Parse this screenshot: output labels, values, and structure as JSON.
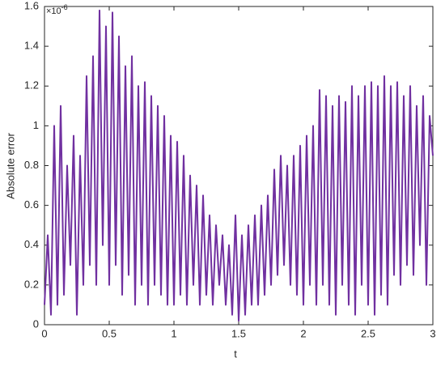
{
  "chart_data": {
    "type": "line",
    "xlabel": "t",
    "ylabel": "Absolute error",
    "y_multiplier": {
      "base": "×10",
      "exponent": "-6"
    },
    "xlim": [
      0,
      3
    ],
    "xticks": [
      0,
      0.5,
      1,
      1.5,
      2,
      2.5,
      3
    ],
    "ylim": [
      0,
      1.6
    ],
    "yticks": [
      0,
      0.2,
      0.4,
      0.6,
      0.8,
      1,
      1.2,
      1.4,
      1.6
    ],
    "x": [
      0,
      0.025,
      0.05,
      0.075,
      0.1,
      0.125,
      0.15,
      0.175,
      0.2,
      0.225,
      0.25,
      0.275,
      0.3,
      0.325,
      0.35,
      0.375,
      0.4,
      0.425,
      0.45,
      0.475,
      0.5,
      0.525,
      0.55,
      0.575,
      0.6,
      0.625,
      0.65,
      0.675,
      0.7,
      0.725,
      0.75,
      0.775,
      0.8,
      0.825,
      0.85,
      0.875,
      0.9,
      0.925,
      0.95,
      0.975,
      1,
      1.025,
      1.05,
      1.075,
      1.1,
      1.125,
      1.15,
      1.175,
      1.2,
      1.225,
      1.25,
      1.275,
      1.3,
      1.325,
      1.35,
      1.375,
      1.4,
      1.425,
      1.45,
      1.475,
      1.5,
      1.525,
      1.55,
      1.575,
      1.6,
      1.625,
      1.65,
      1.675,
      1.7,
      1.725,
      1.75,
      1.775,
      1.8,
      1.825,
      1.85,
      1.875,
      1.9,
      1.925,
      1.95,
      1.975,
      2,
      2.025,
      2.05,
      2.075,
      2.1,
      2.125,
      2.15,
      2.175,
      2.2,
      2.225,
      2.25,
      2.275,
      2.3,
      2.325,
      2.35,
      2.375,
      2.4,
      2.425,
      2.45,
      2.475,
      2.5,
      2.525,
      2.55,
      2.575,
      2.6,
      2.625,
      2.65,
      2.675,
      2.7,
      2.725,
      2.75,
      2.775,
      2.8,
      2.825,
      2.85,
      2.875,
      2.9,
      2.925,
      2.95,
      2.975,
      3
    ],
    "series": [
      {
        "color": "#7030a0",
        "values": [
          0.1,
          0.45,
          0.05,
          1.0,
          0.1,
          1.1,
          0.15,
          0.8,
          0.3,
          0.95,
          0.05,
          0.85,
          0.2,
          1.25,
          0.3,
          1.35,
          0.2,
          1.58,
          0.4,
          1.5,
          0.2,
          1.57,
          0.3,
          1.45,
          0.15,
          1.3,
          0.25,
          1.35,
          0.1,
          1.2,
          0.2,
          1.22,
          0.1,
          1.15,
          0.2,
          1.1,
          0.15,
          1.05,
          0.1,
          0.95,
          0.1,
          0.92,
          0.15,
          0.85,
          0.1,
          0.75,
          0.2,
          0.7,
          0.1,
          0.65,
          0.15,
          0.55,
          0.1,
          0.5,
          0.2,
          0.45,
          0.1,
          0.4,
          0.05,
          0.55,
          0.02,
          0.45,
          0.05,
          0.5,
          0.1,
          0.55,
          0.1,
          0.6,
          0.15,
          0.65,
          0.2,
          0.78,
          0.25,
          0.85,
          0.3,
          0.8,
          0.2,
          0.85,
          0.15,
          0.9,
          0.1,
          0.95,
          0.2,
          1.0,
          0.1,
          1.18,
          0.2,
          1.15,
          0.1,
          1.1,
          0.05,
          1.15,
          0.2,
          1.12,
          0.1,
          1.2,
          0.05,
          1.15,
          0.2,
          1.2,
          0.1,
          1.22,
          0.05,
          1.2,
          0.15,
          1.25,
          0.1,
          1.2,
          0.25,
          1.22,
          0.2,
          1.15,
          0.3,
          1.2,
          0.25,
          1.1,
          0.4,
          1.15,
          0.2,
          1.05,
          0.85
        ]
      }
    ]
  }
}
